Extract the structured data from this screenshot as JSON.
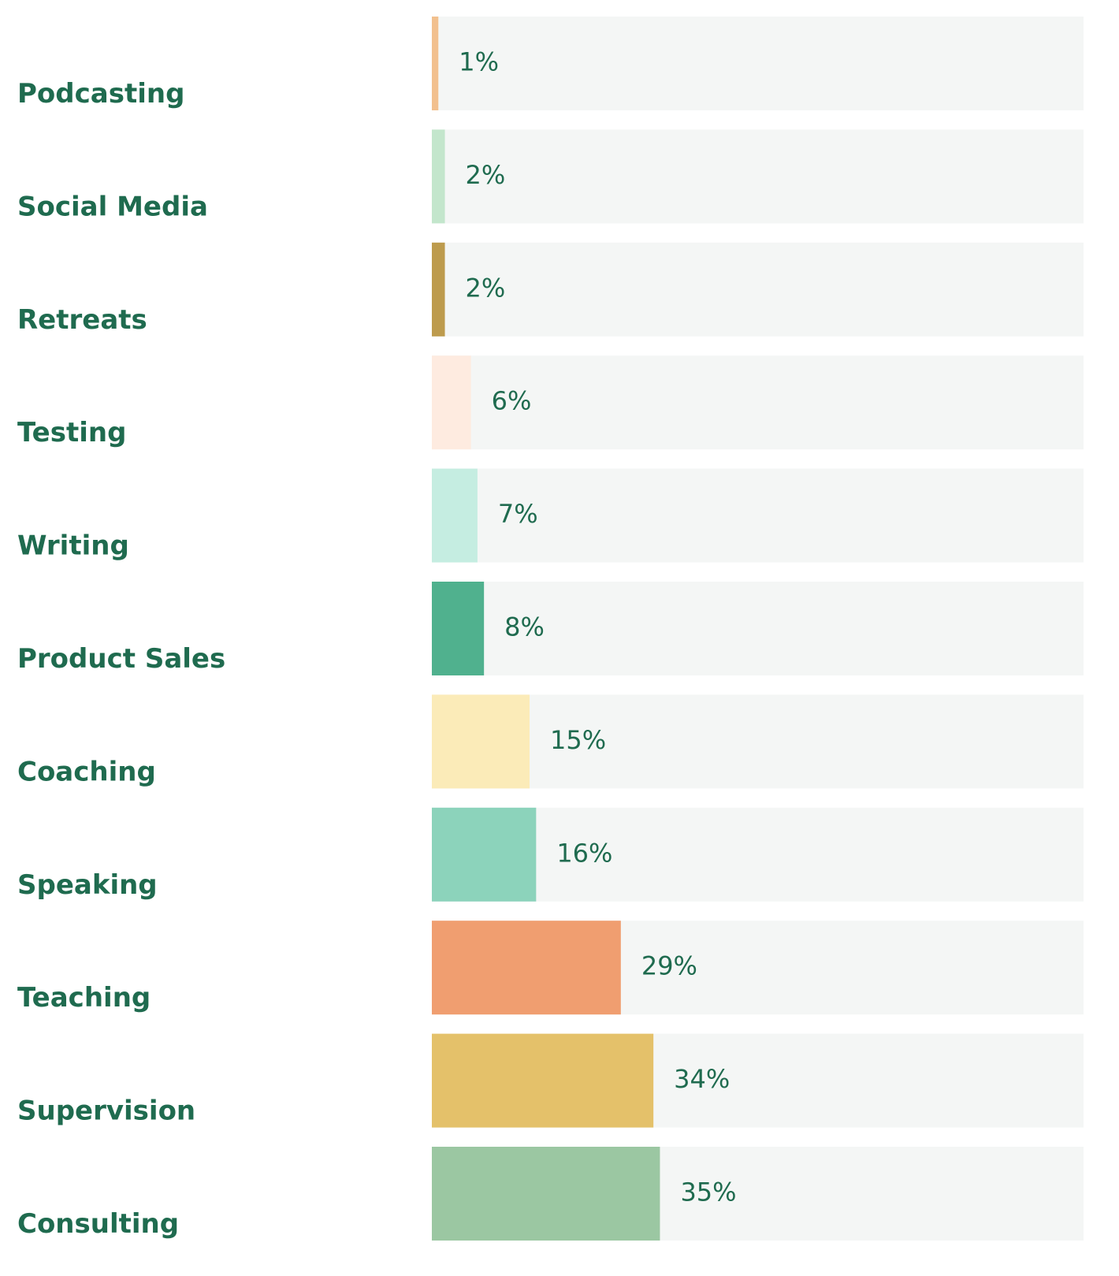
{
  "chart_data": {
    "type": "bar",
    "orientation": "horizontal",
    "categories": [
      "Podcasting",
      "Social Media",
      "Retreats",
      "Testing",
      "Writing",
      "Product Sales",
      "Coaching",
      "Speaking",
      "Teaching",
      "Supervision",
      "Consulting"
    ],
    "values": [
      1,
      2,
      2,
      6,
      7,
      8,
      15,
      16,
      29,
      34,
      35
    ],
    "value_labels": [
      "1%",
      "2%",
      "2%",
      "6%",
      "7%",
      "8%",
      "15%",
      "16%",
      "29%",
      "34%",
      "35%"
    ],
    "colors": [
      "#f2c08e",
      "#c3e6cc",
      "#bd9b4d",
      "#feebe0",
      "#c5ede1",
      "#50b18e",
      "#fbebb8",
      "#8cd3bb",
      "#f09e70",
      "#e4c16a",
      "#9bc7a2"
    ],
    "xlim": [
      0,
      100
    ]
  }
}
